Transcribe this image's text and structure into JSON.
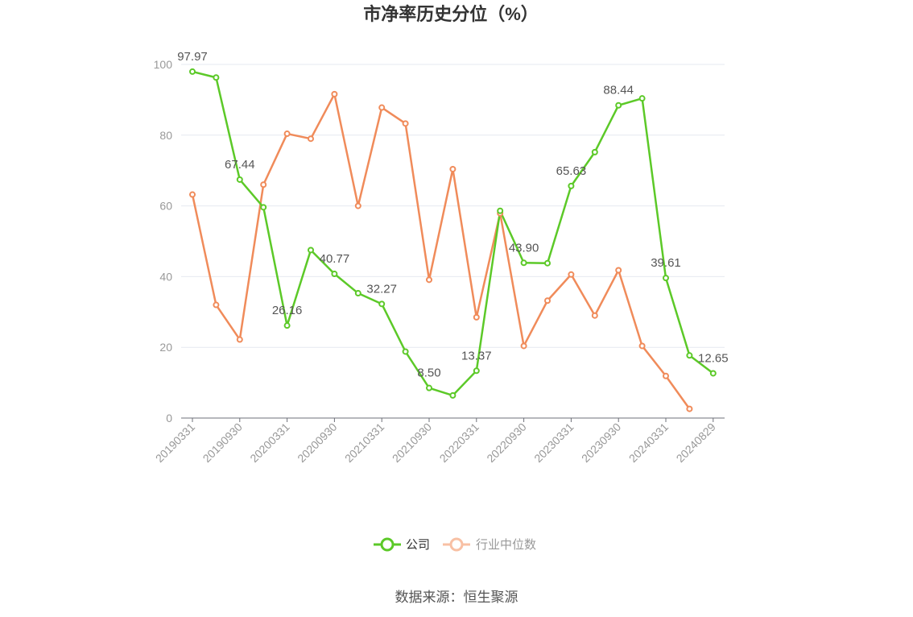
{
  "chart_data": {
    "type": "line",
    "title": "市净率历史分位（%）",
    "x": [
      "20190331",
      "20190630",
      "20190930",
      "20191231",
      "20200331",
      "20200630",
      "20200930",
      "20201231",
      "20210331",
      "20210630",
      "20210930",
      "20211231",
      "20220331",
      "20220630",
      "20220930",
      "20221231",
      "20230331",
      "20230630",
      "20230930",
      "20231231",
      "20240331",
      "20240630",
      "20240829"
    ],
    "x_tick_labels": [
      "20190331",
      "20190930",
      "20200331",
      "20200930",
      "20210331",
      "20210930",
      "20220331",
      "20220930",
      "20230331",
      "20230930",
      "20240331",
      "20240829"
    ],
    "ylim": [
      0,
      100
    ],
    "yticks": [
      0,
      20,
      40,
      60,
      80,
      100
    ],
    "grid": true,
    "legend_position": "bottom",
    "series": [
      {
        "name": "公司",
        "color": "#5cc928",
        "values": [
          97.97,
          96.3,
          67.44,
          59.6,
          26.16,
          47.5,
          40.77,
          35.3,
          32.27,
          18.8,
          8.5,
          6.4,
          13.37,
          58.6,
          43.9,
          43.8,
          65.63,
          75.2,
          88.44,
          90.4,
          39.61,
          17.7,
          12.65
        ],
        "labels": {
          "0": "97.97",
          "2": "67.44",
          "4": "26.16",
          "6": "40.77",
          "8": "32.27",
          "10": "8.50",
          "12": "13.37",
          "14": "43.90",
          "16": "65.63",
          "18": "88.44",
          "20": "39.61",
          "22": "12.65"
        }
      },
      {
        "name": "行业中位数",
        "color": "#f08b5a",
        "values": [
          63.2,
          32.0,
          22.2,
          66.0,
          80.4,
          79.0,
          91.6,
          60.0,
          87.8,
          83.3,
          39.1,
          70.4,
          28.5,
          57.9,
          20.4,
          33.2,
          40.6,
          29.0,
          41.8,
          20.4,
          11.9,
          2.6,
          null
        ]
      }
    ]
  },
  "source_text": "数据来源：恒生聚源"
}
